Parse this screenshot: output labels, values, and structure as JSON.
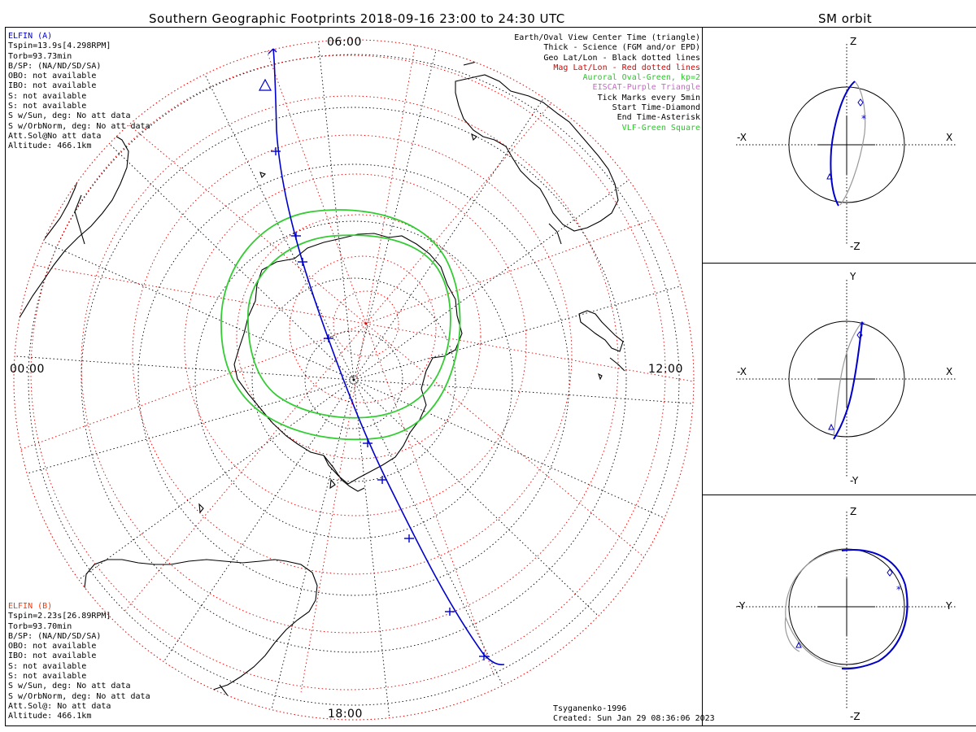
{
  "title": "Southern Geographic Footprints 2018-09-16 23:00 to 24:30 UTC",
  "sm_title": "SM orbit",
  "clock_labels": {
    "top": "06:00",
    "left": "00:00",
    "right": "12:00",
    "bottom": "18:00"
  },
  "elfin_a": {
    "name": "ELFIN (A)",
    "color": "#0000cc",
    "lines": [
      "Tspin=13.9s[4.298RPM]",
      "Torb=93.73min",
      "B/SP: (NA/ND/SD/SA)",
      "OBO: not available",
      "IBO: not available",
      "S: not available",
      "S: not available",
      "S w/Sun, deg: No att data",
      "S w/OrbNorm, deg: No att data",
      "Att.Sol@No att data",
      "Altitude: 466.1km"
    ]
  },
  "elfin_b": {
    "name": "ELFIN (B)",
    "color": "#ff3300",
    "lines": [
      "Tspin=2.23s[26.89RPM]",
      "Torb=93.70min",
      "B/SP: (NA/ND/SD/SA)",
      "OBO: not available",
      "IBO: not available",
      "S: not available",
      "S: not available",
      "S w/Sun, deg: No att data",
      "S w/OrbNorm, deg: No att data",
      "Att.Sol@: No att data",
      "Altitude: 466.1km"
    ]
  },
  "legend": [
    {
      "text": "Earth/Oval View Center Time (triangle)",
      "color": "#000000"
    },
    {
      "text": "Thick - Science (FGM and/or EPD)",
      "color": "#000000"
    },
    {
      "text": "Geo Lat/Lon - Black dotted lines",
      "color": "#000000"
    },
    {
      "text": "Mag Lat/Lon - Red dotted lines",
      "color": "#dd0000"
    },
    {
      "text": "Auroral Oval-Green, kp=2",
      "color": "#22cc22"
    },
    {
      "text": "EISCAT-Purple Triangle",
      "color": "#cc66cc"
    },
    {
      "text": "Tick Marks every 5min",
      "color": "#000000"
    },
    {
      "text": "Start Time-Diamond",
      "color": "#000000"
    },
    {
      "text": "End Time-Asterisk",
      "color": "#000000"
    },
    {
      "text": "VLF-Green Square",
      "color": "#22cc22"
    }
  ],
  "credits": [
    "Tsyganenko-1996",
    "Created: Sun Jan 29 08:36:06 2023"
  ],
  "panels": [
    {
      "name": "xz",
      "top": "Z",
      "bottom": "-Z",
      "left": "-X",
      "right": "X"
    },
    {
      "name": "xy",
      "top": "Y",
      "bottom": "-Y",
      "left": "-X",
      "right": "X"
    },
    {
      "name": "yz",
      "top": "Z",
      "bottom": "-Z",
      "left": "-Y",
      "right": "Y"
    }
  ],
  "colors": {
    "orbit": "#0000cc",
    "oval": "#33cc33",
    "mag_grid": "#dd0000",
    "geo_grid": "#000000",
    "trace_gray": "#999999"
  }
}
